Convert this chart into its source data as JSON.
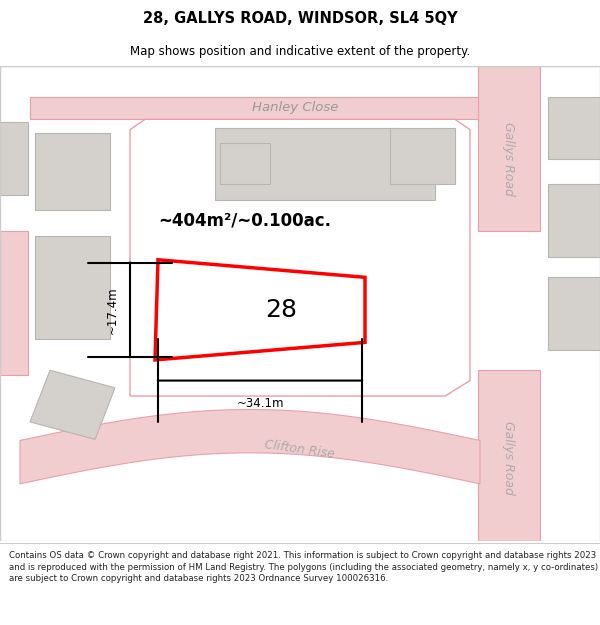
{
  "title": "28, GALLYS ROAD, WINDSOR, SL4 5QY",
  "subtitle": "Map shows position and indicative extent of the property.",
  "footer": "Contains OS data © Crown copyright and database right 2021. This information is subject to Crown copyright and database rights 2023 and is reproduced with the permission of HM Land Registry. The polygons (including the associated geometry, namely x, y co-ordinates) are subject to Crown copyright and database rights 2023 Ordnance Survey 100026316.",
  "highlight_color": "#ff0000",
  "highlight_fill": "#ffffff",
  "road_color": "#e8a0a8",
  "road_fill": "#f2cdd0",
  "building_fill": "#d4d0cc",
  "building_edge": "#b8b4b0",
  "map_bg": "#f5f3f0",
  "label_28": "28",
  "area_label": "~404m²/~0.100ac.",
  "dim_width": "~34.1m",
  "dim_height": "~17.4m",
  "street_hanley": "Hanley Close",
  "street_gallys1": "Gallys Road",
  "street_gallys2": "Gallys Road",
  "street_clifton": "Clifton Rise"
}
